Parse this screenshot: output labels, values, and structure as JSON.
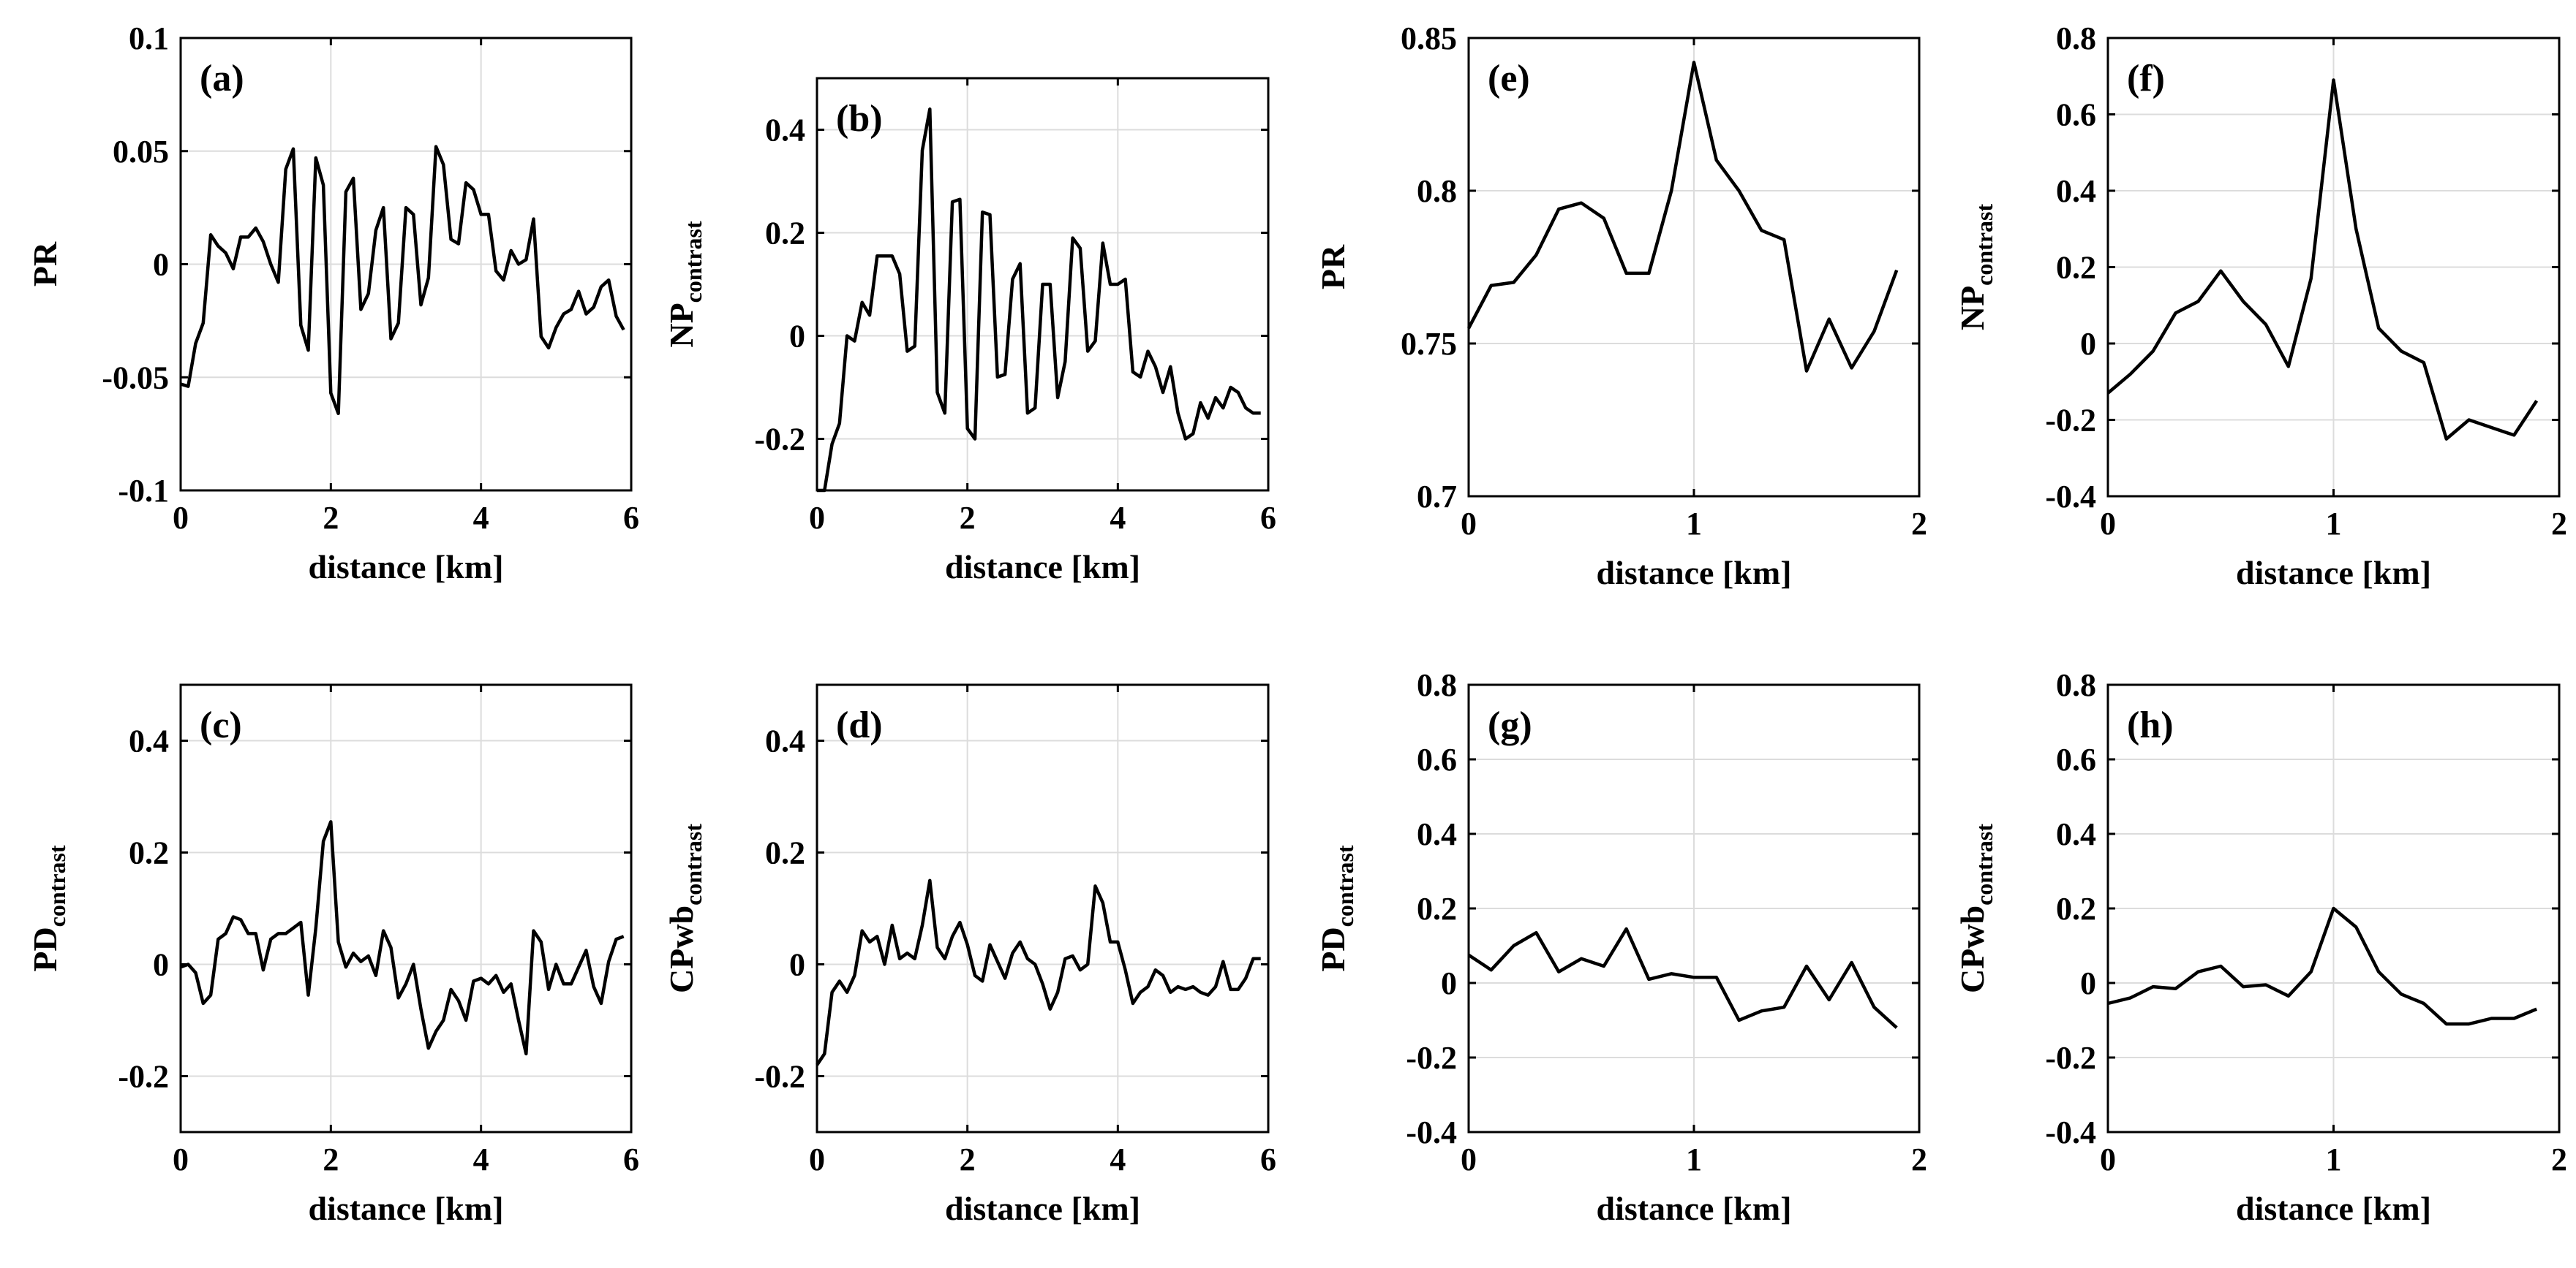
{
  "figure": {
    "subplot_count": 8
  },
  "chart_data": [
    {
      "type": "line",
      "panel": "(a)",
      "xlabel": "distance [km]",
      "ylabel": "PR",
      "ylabel_sub": "",
      "xlim": [
        0,
        6
      ],
      "ylim": [
        -0.1,
        0.1
      ],
      "xticks": [
        0,
        2,
        4,
        6
      ],
      "xtick_labels": [
        "0",
        "2",
        "4",
        "6"
      ],
      "yticks": [
        -0.1,
        -0.05,
        0,
        0.05,
        0.1
      ],
      "ytick_labels": [
        "-0.1",
        "-0.05",
        "0",
        "0.05",
        "0.1"
      ],
      "grid": true,
      "x": [
        0,
        0.1,
        0.2,
        0.3,
        0.4,
        0.5,
        0.6,
        0.7,
        0.8,
        0.9,
        1,
        1.1,
        1.2,
        1.3,
        1.4,
        1.5,
        1.6,
        1.7,
        1.8,
        1.9,
        2,
        2.1,
        2.2,
        2.3,
        2.4,
        2.5,
        2.6,
        2.7,
        2.8,
        2.9,
        3,
        3.1,
        3.2,
        3.3,
        3.4,
        3.5,
        3.6,
        3.7,
        3.8,
        3.9,
        4,
        4.1,
        4.2,
        4.3,
        4.4,
        4.5,
        4.6,
        4.7,
        4.8,
        4.9,
        5,
        5.1,
        5.2,
        5.3,
        5.4,
        5.5,
        5.6,
        5.7,
        5.8,
        5.9
      ],
      "y": [
        -0.053,
        -0.054,
        -0.035,
        -0.026,
        0.013,
        0.008,
        0.005,
        -0.002,
        0.012,
        0.012,
        0.016,
        0.01,
        0,
        -0.008,
        0.042,
        0.051,
        -0.027,
        -0.038,
        0.047,
        0.035,
        -0.057,
        -0.066,
        0.032,
        0.038,
        -0.02,
        -0.013,
        0.015,
        0.025,
        -0.033,
        -0.026,
        0.025,
        0.022,
        -0.018,
        -0.006,
        0.052,
        0.044,
        0.011,
        0.009,
        0.036,
        0.033,
        0.022,
        0.022,
        -0.003,
        -0.007,
        0.006,
        0,
        0.002,
        0.02,
        -0.032,
        -0.037,
        -0.028,
        -0.022,
        -0.02,
        -0.012,
        -0.022,
        -0.019,
        -0.01,
        -0.007,
        -0.023,
        -0.029
      ]
    },
    {
      "type": "line",
      "panel": "(b)",
      "xlabel": "distance [km]",
      "ylabel": "NP",
      "ylabel_sub": "contrast",
      "xlim": [
        0,
        6
      ],
      "ylim": [
        -0.3,
        0.5
      ],
      "xticks": [
        0,
        2,
        4,
        6
      ],
      "xtick_labels": [
        "0",
        "2",
        "4",
        "6"
      ],
      "yticks": [
        -0.2,
        0,
        0.2,
        0.4
      ],
      "ytick_labels": [
        "-0.2",
        "0",
        "0.2",
        "0.4"
      ],
      "grid": true,
      "x": [
        0,
        0.1,
        0.2,
        0.3,
        0.4,
        0.5,
        0.6,
        0.7,
        0.8,
        0.9,
        1,
        1.1,
        1.2,
        1.3,
        1.4,
        1.5,
        1.6,
        1.7,
        1.8,
        1.9,
        2,
        2.1,
        2.2,
        2.3,
        2.4,
        2.5,
        2.6,
        2.7,
        2.8,
        2.9,
        3,
        3.1,
        3.2,
        3.3,
        3.4,
        3.5,
        3.6,
        3.7,
        3.8,
        3.9,
        4,
        4.1,
        4.2,
        4.3,
        4.4,
        4.5,
        4.6,
        4.7,
        4.8,
        4.9,
        5,
        5.1,
        5.2,
        5.3,
        5.4,
        5.5,
        5.6,
        5.7,
        5.8,
        5.9
      ],
      "y": [
        -0.3,
        -0.3,
        -0.21,
        -0.17,
        0,
        -0.01,
        0.065,
        0.04,
        0.155,
        0.155,
        0.155,
        0.12,
        -0.03,
        -0.02,
        0.36,
        0.44,
        -0.11,
        -0.15,
        0.26,
        0.265,
        -0.18,
        -0.2,
        0.24,
        0.235,
        -0.08,
        -0.075,
        0.11,
        0.14,
        -0.15,
        -0.14,
        0.1,
        0.1,
        -0.12,
        -0.05,
        0.19,
        0.17,
        -0.03,
        -0.01,
        0.18,
        0.1,
        0.1,
        0.11,
        -0.07,
        -0.08,
        -0.03,
        -0.06,
        -0.11,
        -0.06,
        -0.15,
        -0.2,
        -0.19,
        -0.13,
        -0.16,
        -0.12,
        -0.14,
        -0.1,
        -0.11,
        -0.14,
        -0.15,
        -0.15
      ]
    },
    {
      "type": "line",
      "panel": "(c)",
      "xlabel": "distance [km]",
      "ylabel": "PD",
      "ylabel_sub": "contrast",
      "xlim": [
        0,
        6
      ],
      "ylim": [
        -0.3,
        0.5
      ],
      "xticks": [
        0,
        2,
        4,
        6
      ],
      "xtick_labels": [
        "0",
        "2",
        "4",
        "6"
      ],
      "yticks": [
        -0.2,
        0,
        0.2,
        0.4
      ],
      "ytick_labels": [
        "-0.2",
        "0",
        "0.2",
        "0.4"
      ],
      "grid": true,
      "x": [
        0,
        0.1,
        0.2,
        0.3,
        0.4,
        0.5,
        0.6,
        0.7,
        0.8,
        0.9,
        1,
        1.1,
        1.2,
        1.3,
        1.4,
        1.5,
        1.6,
        1.7,
        1.8,
        1.9,
        2,
        2.1,
        2.2,
        2.3,
        2.4,
        2.5,
        2.6,
        2.7,
        2.8,
        2.9,
        3,
        3.1,
        3.2,
        3.3,
        3.4,
        3.5,
        3.6,
        3.7,
        3.8,
        3.9,
        4,
        4.1,
        4.2,
        4.3,
        4.4,
        4.5,
        4.6,
        4.7,
        4.8,
        4.9,
        5,
        5.1,
        5.2,
        5.3,
        5.4,
        5.5,
        5.6,
        5.7,
        5.8,
        5.9
      ],
      "y": [
        -0.005,
        0,
        -0.015,
        -0.07,
        -0.055,
        0.045,
        0.055,
        0.085,
        0.08,
        0.055,
        0.055,
        -0.01,
        0.045,
        0.055,
        0.055,
        0.065,
        0.075,
        -0.055,
        0.065,
        0.22,
        0.255,
        0.04,
        -0.005,
        0.02,
        0.005,
        0.015,
        -0.02,
        0.06,
        0.03,
        -0.06,
        -0.035,
        0.0,
        -0.08,
        -0.15,
        -0.12,
        -0.1,
        -0.045,
        -0.065,
        -0.1,
        -0.03,
        -0.025,
        -0.035,
        -0.02,
        -0.05,
        -0.035,
        -0.1,
        -0.16,
        0.06,
        0.04,
        -0.045,
        0.0,
        -0.035,
        -0.035,
        -0.005,
        0.025,
        -0.04,
        -0.07,
        0.005,
        0.045,
        0.05
      ]
    },
    {
      "type": "line",
      "panel": "(d)",
      "xlabel": "distance [km]",
      "ylabel": "CPwb",
      "ylabel_sub": "contrast",
      "xlim": [
        0,
        6
      ],
      "ylim": [
        -0.3,
        0.5
      ],
      "xticks": [
        0,
        2,
        4,
        6
      ],
      "xtick_labels": [
        "0",
        "2",
        "4",
        "6"
      ],
      "yticks": [
        -0.2,
        0,
        0.2,
        0.4
      ],
      "ytick_labels": [
        "-0.2",
        "0",
        "0.2",
        "0.4"
      ],
      "grid": true,
      "x": [
        0,
        0.1,
        0.2,
        0.3,
        0.4,
        0.5,
        0.6,
        0.7,
        0.8,
        0.9,
        1,
        1.1,
        1.2,
        1.3,
        1.4,
        1.5,
        1.6,
        1.7,
        1.8,
        1.9,
        2,
        2.1,
        2.2,
        2.3,
        2.4,
        2.5,
        2.6,
        2.7,
        2.8,
        2.9,
        3,
        3.1,
        3.2,
        3.3,
        3.4,
        3.5,
        3.6,
        3.7,
        3.8,
        3.9,
        4,
        4.1,
        4.2,
        4.3,
        4.4,
        4.5,
        4.6,
        4.7,
        4.8,
        4.9,
        5,
        5.1,
        5.2,
        5.3,
        5.4,
        5.5,
        5.6,
        5.7,
        5.8,
        5.9
      ],
      "y": [
        -0.18,
        -0.16,
        -0.05,
        -0.03,
        -0.05,
        -0.02,
        0.06,
        0.04,
        0.05,
        0.0,
        0.07,
        0.01,
        0.02,
        0.01,
        0.07,
        0.15,
        0.03,
        0.01,
        0.05,
        0.075,
        0.035,
        -0.02,
        -0.03,
        0.035,
        0.005,
        -0.025,
        0.02,
        0.04,
        0.01,
        0.0,
        -0.035,
        -0.08,
        -0.05,
        0.01,
        0.015,
        -0.01,
        0.0,
        0.14,
        0.11,
        0.04,
        0.04,
        -0.01,
        -0.07,
        -0.05,
        -0.04,
        -0.01,
        -0.02,
        -0.05,
        -0.04,
        -0.045,
        -0.04,
        -0.05,
        -0.055,
        -0.04,
        0.005,
        -0.045,
        -0.045,
        -0.025,
        0.01,
        0.01
      ]
    },
    {
      "type": "line",
      "panel": "(e)",
      "xlabel": "distance [km]",
      "ylabel": "PR",
      "ylabel_sub": "",
      "xlim": [
        0,
        2
      ],
      "ylim": [
        0.7,
        0.85
      ],
      "xticks": [
        0,
        1,
        2
      ],
      "xtick_labels": [
        "0",
        "1",
        "2"
      ],
      "yticks": [
        0.7,
        0.75,
        0.8,
        0.85
      ],
      "ytick_labels": [
        "0.7",
        "0.75",
        "0.8",
        "0.85"
      ],
      "grid": true,
      "x": [
        0,
        0.1,
        0.2,
        0.3,
        0.4,
        0.5,
        0.6,
        0.7,
        0.8,
        0.9,
        1,
        1.1,
        1.2,
        1.3,
        1.4,
        1.5,
        1.6,
        1.7,
        1.8,
        1.9
      ],
      "y": [
        0.755,
        0.769,
        0.77,
        0.779,
        0.794,
        0.796,
        0.791,
        0.773,
        0.773,
        0.8,
        0.842,
        0.81,
        0.8,
        0.787,
        0.784,
        0.741,
        0.758,
        0.742,
        0.754,
        0.774
      ]
    },
    {
      "type": "line",
      "panel": "(f)",
      "xlabel": "distance [km]",
      "ylabel": "NP",
      "ylabel_sub": "contrast",
      "xlim": [
        0,
        2
      ],
      "ylim": [
        -0.4,
        0.8
      ],
      "xticks": [
        0,
        1,
        2
      ],
      "xtick_labels": [
        "0",
        "1",
        "2"
      ],
      "yticks": [
        -0.4,
        -0.2,
        0,
        0.2,
        0.4,
        0.6,
        0.8
      ],
      "ytick_labels": [
        "-0.4",
        "-0.2",
        "0",
        "0.2",
        "0.4",
        "0.6",
        "0.8"
      ],
      "grid": true,
      "x": [
        0,
        0.1,
        0.2,
        0.3,
        0.4,
        0.5,
        0.6,
        0.7,
        0.8,
        0.9,
        1,
        1.1,
        1.2,
        1.3,
        1.4,
        1.5,
        1.6,
        1.7,
        1.8,
        1.9
      ],
      "y": [
        -0.13,
        -0.08,
        -0.02,
        0.08,
        0.11,
        0.19,
        0.11,
        0.05,
        -0.06,
        0.17,
        0.69,
        0.3,
        0.04,
        -0.02,
        -0.05,
        -0.25,
        -0.2,
        -0.22,
        -0.24,
        -0.15
      ]
    },
    {
      "type": "line",
      "panel": "(g)",
      "xlabel": "distance [km]",
      "ylabel": "PD",
      "ylabel_sub": "contrast",
      "xlim": [
        0,
        2
      ],
      "ylim": [
        -0.4,
        0.8
      ],
      "xticks": [
        0,
        1,
        2
      ],
      "xtick_labels": [
        "0",
        "1",
        "2"
      ],
      "yticks": [
        -0.4,
        -0.2,
        0,
        0.2,
        0.4,
        0.6,
        0.8
      ],
      "ytick_labels": [
        "-0.4",
        "-0.2",
        "0",
        "0.2",
        "0.4",
        "0.6",
        "0.8"
      ],
      "grid": true,
      "x": [
        0,
        0.1,
        0.2,
        0.3,
        0.4,
        0.5,
        0.6,
        0.7,
        0.8,
        0.9,
        1,
        1.1,
        1.2,
        1.3,
        1.4,
        1.5,
        1.6,
        1.7,
        1.8,
        1.9
      ],
      "y": [
        0.075,
        0.035,
        0.1,
        0.135,
        0.03,
        0.065,
        0.045,
        0.145,
        0.01,
        0.025,
        0.015,
        0.015,
        -0.1,
        -0.075,
        -0.065,
        0.045,
        -0.045,
        0.055,
        -0.065,
        -0.12
      ]
    },
    {
      "type": "line",
      "panel": "(h)",
      "xlabel": "distance [km]",
      "ylabel": "CPwb",
      "ylabel_sub": "contrast",
      "xlim": [
        0,
        2
      ],
      "ylim": [
        -0.4,
        0.8
      ],
      "xticks": [
        0,
        1,
        2
      ],
      "xtick_labels": [
        "0",
        "1",
        "2"
      ],
      "yticks": [
        -0.4,
        -0.2,
        0,
        0.2,
        0.4,
        0.6,
        0.8
      ],
      "ytick_labels": [
        "-0.4",
        "-0.2",
        "0",
        "0.2",
        "0.4",
        "0.6",
        "0.8"
      ],
      "grid": true,
      "x": [
        0,
        0.1,
        0.2,
        0.3,
        0.4,
        0.5,
        0.6,
        0.7,
        0.8,
        0.9,
        1,
        1.1,
        1.2,
        1.3,
        1.4,
        1.5,
        1.6,
        1.7,
        1.8,
        1.9
      ],
      "y": [
        -0.055,
        -0.04,
        -0.01,
        -0.015,
        0.03,
        0.045,
        -0.01,
        -0.005,
        -0.035,
        0.03,
        0.2,
        0.15,
        0.03,
        -0.03,
        -0.055,
        -0.11,
        -0.11,
        -0.095,
        -0.095,
        -0.07
      ]
    }
  ]
}
